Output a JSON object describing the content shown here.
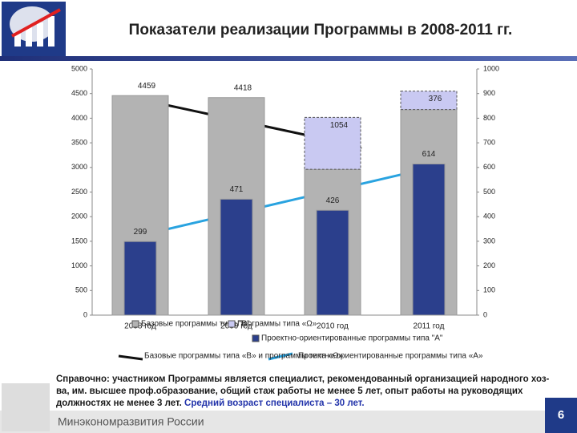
{
  "chart_data": {
    "type": "bar",
    "title": "Показатели реализации Программы в 2008-2011 гг.",
    "categories": [
      "2008 год",
      "2009 год",
      "2010 год",
      "2011 год"
    ],
    "series": [
      {
        "name": "Базовые программы типа \"В\"",
        "color": "#b3b3b3",
        "values": [
          4459,
          4418,
          2962,
          4175
        ],
        "axis": "y"
      },
      {
        "name": "Программы типа «Ω»",
        "color": "#c9c9f2",
        "values": [
          null,
          null,
          1054,
          376
        ],
        "axis": "y",
        "stacked": true
      },
      {
        "name": "Проектно-ориентированные программы типа \"А\"",
        "color": "#2b3f8c",
        "values": [
          299,
          471,
          426,
          614
        ],
        "axis": "y2"
      }
    ],
    "ylim": [
      0,
      5000
    ],
    "yticks": [
      0,
      500,
      1000,
      1500,
      2000,
      2500,
      3000,
      3500,
      4000,
      4500,
      5000
    ],
    "y2lim": [
      0,
      1000
    ],
    "y2ticks": [
      0,
      100,
      200,
      300,
      400,
      500,
      600,
      700,
      800,
      900,
      1000
    ],
    "grid": false,
    "trend_legend": [
      "Базовые программы типа «В» и программы типа «Ω»",
      "Проектно-ориентированные программы типа «А»"
    ]
  },
  "footnote": {
    "text": "Справочно: участником Программы является специалист, рекомендованный организацией народного хоз-ва, им. высшее проф.образование, общий стаж работы не менее 5 лет, опыт работы на руководящих должностях не менее 3 лет.",
    "highlight": "Средний возраст специалиста – 30 лет."
  },
  "footer": {
    "org": "Минэкономразвития России",
    "page": "6"
  }
}
